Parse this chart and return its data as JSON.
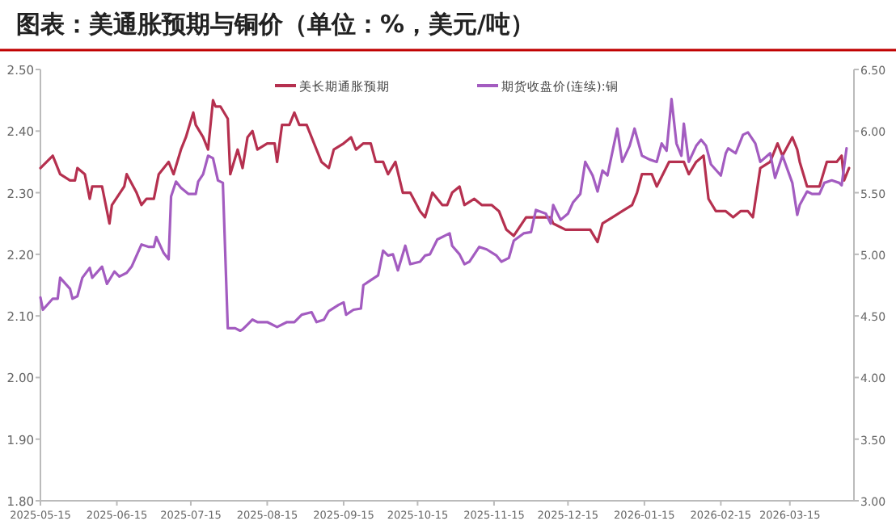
{
  "chart_data": {
    "type": "line",
    "title": "图表：美通胀预期与铜价（单位：%，美元/吨）",
    "legend": "top",
    "xlim": [
      "2025-05-15",
      "2026-04-10"
    ],
    "xticks": [
      "2025-05-15",
      "2025-06-15",
      "2025-07-15",
      "2025-08-15",
      "2025-09-15",
      "2025-10-15",
      "2025-11-15",
      "2025-12-15",
      "2026-01-15",
      "2026-02-15",
      "2026-03-15"
    ],
    "ylim": [
      1.8,
      2.5
    ],
    "yticks": [
      {
        "value": 1.8,
        "label": "1.80"
      },
      {
        "value": 1.9,
        "label": "1.90"
      },
      {
        "value": 2.0,
        "label": "2.00"
      },
      {
        "value": 2.1,
        "label": "2.10"
      },
      {
        "value": 2.2,
        "label": "2.20"
      },
      {
        "value": 2.3,
        "label": "2.30"
      },
      {
        "value": 2.4,
        "label": "2.40"
      },
      {
        "value": 2.5,
        "label": "2.50"
      }
    ],
    "y2lim": [
      3.0,
      6.5
    ],
    "y2ticks": [
      {
        "value": 3.0,
        "label": "3.00"
      },
      {
        "value": 3.5,
        "label": "3.50"
      },
      {
        "value": 4.0,
        "label": "4.00"
      },
      {
        "value": 4.5,
        "label": "4.50"
      },
      {
        "value": 5.0,
        "label": "5.00"
      },
      {
        "value": 5.5,
        "label": "5.50"
      },
      {
        "value": 6.0,
        "label": "6.00"
      },
      {
        "value": 6.5,
        "label": "6.50"
      }
    ],
    "series": [
      {
        "name": "美长期通胀预期",
        "color": "#b5304f",
        "axis": "y",
        "x": [
          "2025-05-15",
          "2025-05-20",
          "2025-05-21",
          "2025-05-23",
          "2025-05-27",
          "2025-05-29",
          "2025-05-30",
          "2025-06-02",
          "2025-06-04",
          "2025-06-05",
          "2025-06-09",
          "2025-06-12",
          "2025-06-13",
          "2025-06-18",
          "2025-06-19",
          "2025-06-23",
          "2025-06-25",
          "2025-06-27",
          "2025-06-30",
          "2025-07-02",
          "2025-07-06",
          "2025-07-08",
          "2025-07-11",
          "2025-07-13",
          "2025-07-16",
          "2025-07-17",
          "2025-07-20",
          "2025-07-22",
          "2025-07-24",
          "2025-07-25",
          "2025-07-27",
          "2025-07-30",
          "2025-07-31",
          "2025-08-03",
          "2025-08-05",
          "2025-08-07",
          "2025-08-09",
          "2025-08-11",
          "2025-08-15",
          "2025-08-18",
          "2025-08-19",
          "2025-08-21",
          "2025-08-24",
          "2025-08-26",
          "2025-08-28",
          "2025-08-31",
          "2025-09-03",
          "2025-09-06",
          "2025-09-09",
          "2025-09-11",
          "2025-09-15",
          "2025-09-18",
          "2025-09-20",
          "2025-09-23",
          "2025-09-26",
          "2025-09-28",
          "2025-10-01",
          "2025-10-03",
          "2025-10-06",
          "2025-10-09",
          "2025-10-12",
          "2025-10-16",
          "2025-10-18",
          "2025-10-21",
          "2025-10-25",
          "2025-10-27",
          "2025-10-29",
          "2025-11-01",
          "2025-11-03",
          "2025-11-07",
          "2025-11-10",
          "2025-11-14",
          "2025-11-17",
          "2025-11-20",
          "2025-11-23",
          "2025-11-28",
          "2025-12-02",
          "2025-12-06",
          "2025-12-08",
          "2025-12-09",
          "2025-12-14",
          "2025-12-19",
          "2025-12-24",
          "2025-12-27",
          "2025-12-29",
          "2026-01-02",
          "2026-01-06",
          "2026-01-10",
          "2026-01-12",
          "2026-01-14",
          "2026-01-18",
          "2026-01-20",
          "2026-01-25",
          "2026-01-28",
          "2026-01-31",
          "2026-02-02",
          "2026-02-05",
          "2026-02-08",
          "2026-02-10",
          "2026-02-13",
          "2026-02-17",
          "2026-02-20",
          "2026-02-23",
          "2026-02-26",
          "2026-02-28",
          "2026-03-03",
          "2026-03-07",
          "2026-03-10",
          "2026-03-12",
          "2026-03-16",
          "2026-03-18",
          "2026-03-19",
          "2026-03-22",
          "2026-03-24",
          "2026-03-27",
          "2026-03-30",
          "2026-04-03",
          "2026-04-05",
          "2026-04-06",
          "2026-04-08"
        ],
        "values": [
          2.34,
          2.36,
          2.35,
          2.33,
          2.32,
          2.32,
          2.34,
          2.33,
          2.29,
          2.31,
          2.31,
          2.25,
          2.28,
          2.31,
          2.33,
          2.3,
          2.28,
          2.29,
          2.29,
          2.33,
          2.35,
          2.33,
          2.37,
          2.39,
          2.43,
          2.41,
          2.39,
          2.37,
          2.45,
          2.44,
          2.44,
          2.42,
          2.33,
          2.37,
          2.34,
          2.39,
          2.4,
          2.37,
          2.38,
          2.38,
          2.35,
          2.41,
          2.41,
          2.43,
          2.41,
          2.41,
          2.38,
          2.35,
          2.34,
          2.37,
          2.38,
          2.39,
          2.37,
          2.38,
          2.38,
          2.35,
          2.35,
          2.33,
          2.35,
          2.3,
          2.3,
          2.27,
          2.26,
          2.3,
          2.28,
          2.28,
          2.3,
          2.31,
          2.28,
          2.29,
          2.28,
          2.28,
          2.27,
          2.24,
          2.23,
          2.26,
          2.26,
          2.26,
          2.26,
          2.25,
          2.24,
          2.24,
          2.24,
          2.22,
          2.25,
          2.26,
          2.27,
          2.28,
          2.3,
          2.33,
          2.33,
          2.31,
          2.35,
          2.35,
          2.35,
          2.33,
          2.35,
          2.36,
          2.29,
          2.27,
          2.27,
          2.26,
          2.27,
          2.27,
          2.26,
          2.34,
          2.35,
          2.38,
          2.36,
          2.39,
          2.37,
          2.35,
          2.31,
          2.31,
          2.31,
          2.35,
          2.35,
          2.36,
          2.32,
          2.34
        ]
      },
      {
        "name": "期货收盘价(连续):铜",
        "color": "#a35cc0",
        "axis": "y2",
        "x": [
          "2025-05-15",
          "2025-05-16",
          "2025-05-20",
          "2025-05-22",
          "2025-05-23",
          "2025-05-27",
          "2025-05-28",
          "2025-05-30",
          "2025-06-01",
          "2025-06-04",
          "2025-06-05",
          "2025-06-09",
          "2025-06-11",
          "2025-06-14",
          "2025-06-16",
          "2025-06-19",
          "2025-06-21",
          "2025-06-25",
          "2025-06-28",
          "2025-06-30",
          "2025-07-01",
          "2025-07-04",
          "2025-07-06",
          "2025-07-07",
          "2025-07-09",
          "2025-07-11",
          "2025-07-14",
          "2025-07-17",
          "2025-07-18",
          "2025-07-20",
          "2025-07-22",
          "2025-07-24",
          "2025-07-26",
          "2025-07-28",
          "2025-07-30",
          "2025-08-02",
          "2025-08-04",
          "2025-08-05",
          "2025-08-07",
          "2025-08-09",
          "2025-08-11",
          "2025-08-15",
          "2025-08-19",
          "2025-08-23",
          "2025-08-26",
          "2025-08-29",
          "2025-09-02",
          "2025-09-04",
          "2025-09-07",
          "2025-09-09",
          "2025-09-13",
          "2025-09-15",
          "2025-09-16",
          "2025-09-19",
          "2025-09-22",
          "2025-09-23",
          "2025-09-26",
          "2025-09-29",
          "2025-10-01",
          "2025-10-03",
          "2025-10-05",
          "2025-10-07",
          "2025-10-10",
          "2025-10-12",
          "2025-10-16",
          "2025-10-18",
          "2025-10-20",
          "2025-10-23",
          "2025-10-28",
          "2025-10-29",
          "2025-11-01",
          "2025-11-03",
          "2025-11-05",
          "2025-11-09",
          "2025-11-12",
          "2025-11-16",
          "2025-11-18",
          "2025-11-21",
          "2025-11-23",
          "2025-11-27",
          "2025-11-30",
          "2025-12-02",
          "2025-12-06",
          "2025-12-08",
          "2025-12-09",
          "2025-12-12",
          "2025-12-15",
          "2025-12-17",
          "2025-12-20",
          "2025-12-22",
          "2025-12-25",
          "2025-12-27",
          "2025-12-29",
          "2025-12-31",
          "2026-01-04",
          "2026-01-06",
          "2026-01-09",
          "2026-01-11",
          "2026-01-14",
          "2026-01-17",
          "2026-01-20",
          "2026-01-22",
          "2026-01-24",
          "2026-01-26",
          "2026-01-28",
          "2026-01-30",
          "2026-01-31",
          "2026-02-02",
          "2026-02-05",
          "2026-02-07",
          "2026-02-09",
          "2026-02-11",
          "2026-02-15",
          "2026-02-17",
          "2026-02-18",
          "2026-02-21",
          "2026-02-24",
          "2026-02-26",
          "2026-03-01",
          "2026-03-03",
          "2026-03-07",
          "2026-03-09",
          "2026-03-12",
          "2026-03-16",
          "2026-03-18",
          "2026-03-19",
          "2026-03-22",
          "2026-03-24",
          "2026-03-27",
          "2026-03-29",
          "2026-04-01",
          "2026-04-04",
          "2026-04-05",
          "2026-04-07"
        ],
        "values": [
          4.65,
          4.55,
          4.64,
          4.64,
          4.81,
          4.72,
          4.64,
          4.66,
          4.81,
          4.89,
          4.81,
          4.9,
          4.76,
          4.86,
          4.82,
          4.85,
          4.9,
          5.08,
          5.06,
          5.06,
          5.14,
          5.01,
          4.96,
          5.47,
          5.59,
          5.54,
          5.49,
          5.49,
          5.59,
          5.65,
          5.8,
          5.78,
          5.6,
          5.58,
          4.4,
          4.4,
          4.38,
          4.39,
          4.43,
          4.47,
          4.45,
          4.45,
          4.41,
          4.45,
          4.45,
          4.51,
          4.53,
          4.45,
          4.47,
          4.54,
          4.59,
          4.61,
          4.51,
          4.55,
          4.56,
          4.75,
          4.79,
          4.83,
          5.03,
          4.99,
          5.0,
          4.87,
          5.07,
          4.92,
          4.94,
          4.99,
          5.0,
          5.12,
          5.17,
          5.07,
          5.0,
          4.92,
          4.94,
          5.06,
          5.04,
          4.99,
          4.94,
          4.97,
          5.11,
          5.17,
          5.18,
          5.36,
          5.33,
          5.25,
          5.4,
          5.28,
          5.33,
          5.42,
          5.49,
          5.75,
          5.64,
          5.51,
          5.68,
          5.64,
          6.02,
          5.75,
          5.88,
          6.02,
          5.8,
          5.77,
          5.75,
          5.9,
          5.84,
          6.26,
          5.9,
          5.8,
          6.06,
          5.75,
          5.88,
          5.93,
          5.88,
          5.73,
          5.64,
          5.82,
          5.86,
          5.82,
          5.97,
          5.99,
          5.9,
          5.75,
          5.82,
          5.62,
          5.8,
          5.58,
          5.32,
          5.4,
          5.51,
          5.49,
          5.49,
          5.58,
          5.6,
          5.58,
          5.56,
          5.86
        ]
      }
    ]
  }
}
